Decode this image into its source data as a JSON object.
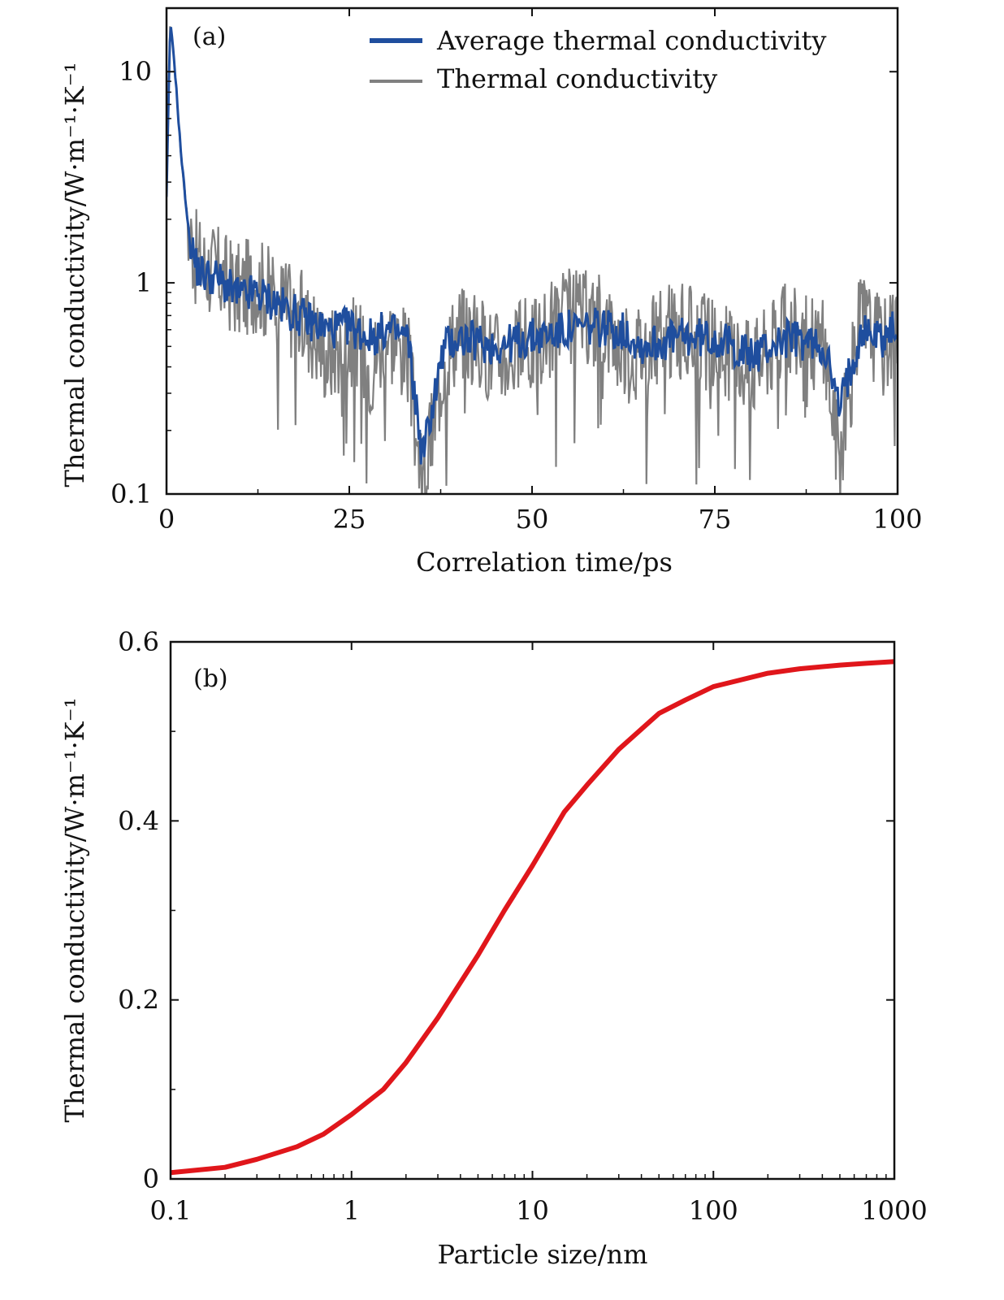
{
  "chart_data": [
    {
      "panel": "(a)",
      "type": "line",
      "title": "",
      "xlabel": "Correlation time/ps",
      "ylabel": "Thermal conductivity/W·m⁻¹·K⁻¹",
      "xscale": "linear",
      "yscale": "log",
      "xlim": [
        0,
        100
      ],
      "ylim": [
        0.1,
        20
      ],
      "xticks": [
        0,
        25,
        50,
        75,
        100
      ],
      "xtick_labels": [
        "0",
        "25",
        "50",
        "75",
        "100"
      ],
      "yticks": [
        0.1,
        1,
        10
      ],
      "ytick_labels": [
        "0.1",
        "1",
        "10"
      ],
      "legend_position": "top-right",
      "colors": {
        "average": "#1f4e9e",
        "raw": "#808080"
      },
      "series": [
        {
          "name": "Average thermal conductivity",
          "x": [
            0,
            0.5,
            1,
            2,
            3,
            4,
            5,
            7,
            10,
            12,
            15,
            18,
            20,
            22,
            25,
            28,
            30,
            33,
            35,
            38,
            40,
            45,
            50,
            55,
            60,
            63,
            65,
            70,
            75,
            80,
            85,
            90,
            92,
            95,
            98,
            100
          ],
          "y": [
            2.5,
            17,
            12,
            4,
            1.8,
            1.2,
            1.1,
            1.05,
            0.85,
            0.9,
            0.8,
            0.7,
            0.65,
            0.6,
            0.62,
            0.55,
            0.6,
            0.55,
            0.15,
            0.5,
            0.55,
            0.5,
            0.55,
            0.6,
            0.62,
            0.58,
            0.5,
            0.55,
            0.55,
            0.45,
            0.55,
            0.5,
            0.25,
            0.6,
            0.55,
            0.62
          ]
        },
        {
          "name": "Thermal conductivity",
          "x": [
            0,
            0.5,
            1,
            2,
            3,
            4,
            5,
            7,
            10,
            12,
            15,
            18,
            20,
            22,
            25,
            28,
            30,
            33,
            35,
            38,
            40,
            45,
            50,
            55,
            60,
            63,
            65,
            70,
            75,
            80,
            85,
            90,
            92,
            95,
            98,
            100
          ],
          "y": [
            2.5,
            17,
            12,
            4,
            1.8,
            1.3,
            1.2,
            1.1,
            0.9,
            1.0,
            0.85,
            0.7,
            0.6,
            0.45,
            0.55,
            0.4,
            0.6,
            0.45,
            0.1,
            0.45,
            0.6,
            0.45,
            0.5,
            0.7,
            0.65,
            0.45,
            0.5,
            0.6,
            0.5,
            0.4,
            0.6,
            0.5,
            0.15,
            0.7,
            0.5,
            0.65
          ]
        }
      ]
    },
    {
      "panel": "(b)",
      "type": "line",
      "title": "",
      "xlabel": "Particle size/nm",
      "ylabel": "Thermal conductivity/W·m⁻¹·K⁻¹",
      "xscale": "log",
      "yscale": "linear",
      "xlim": [
        0.1,
        1000
      ],
      "ylim": [
        0,
        0.6
      ],
      "xticks": [
        0.1,
        1,
        10,
        100,
        1000
      ],
      "xtick_labels": [
        "0.1",
        "1",
        "10",
        "100",
        "1000"
      ],
      "yticks": [
        0,
        0.2,
        0.4,
        0.6
      ],
      "ytick_labels": [
        "0",
        "0.2",
        "0.4",
        "0.6"
      ],
      "colors": {
        "line": "#e0161b"
      },
      "series": [
        {
          "name": "Thermal conductivity",
          "x": [
            0.1,
            0.2,
            0.3,
            0.5,
            0.7,
            1,
            1.5,
            2,
            3,
            5,
            7,
            10,
            15,
            20,
            30,
            50,
            70,
            100,
            200,
            300,
            500,
            700,
            1000
          ],
          "y": [
            0.007,
            0.013,
            0.022,
            0.036,
            0.05,
            0.072,
            0.1,
            0.13,
            0.18,
            0.25,
            0.3,
            0.35,
            0.41,
            0.44,
            0.48,
            0.52,
            0.535,
            0.55,
            0.565,
            0.57,
            0.574,
            0.576,
            0.578
          ]
        }
      ]
    }
  ]
}
